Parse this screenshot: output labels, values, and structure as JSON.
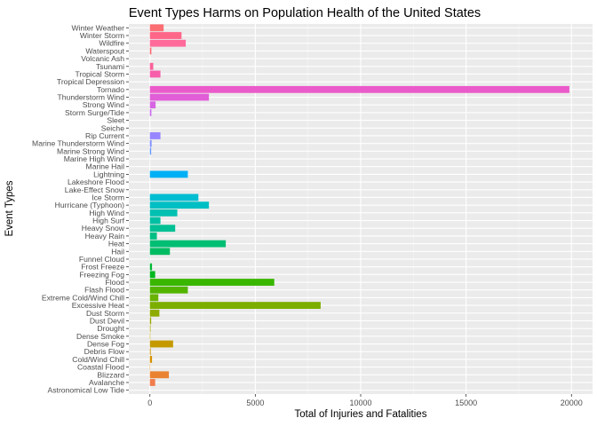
{
  "chart_data": {
    "type": "bar",
    "orientation": "horizontal",
    "title": "Event Types Harms on Population Health of the United States",
    "xlabel": "Total of Injuries and Fatalities",
    "ylabel": "Event Types",
    "xlim": [
      -1000,
      21000
    ],
    "xticks": [
      0,
      5000,
      10000,
      15000,
      20000
    ],
    "grid": true,
    "legend": "none",
    "categories": [
      "Astronomical Low Tide",
      "Avalanche",
      "Blizzard",
      "Coastal Flood",
      "Cold/Wind Chill",
      "Debris Flow",
      "Dense Fog",
      "Dense Smoke",
      "Drought",
      "Dust Devil",
      "Dust Storm",
      "Excessive Heat",
      "Extreme Cold/Wind Chill",
      "Flash Flood",
      "Flood",
      "Freezing Fog",
      "Frost Freeze",
      "Funnel Cloud",
      "Hail",
      "Heat",
      "Heavy Rain",
      "Heavy Snow",
      "High Surf",
      "High Wind",
      "Hurricane (Typhoon)",
      "Ice Storm",
      "Lake-Effect Snow",
      "Lakeshore Flood",
      "Lightning",
      "Marine Hail",
      "Marine High Wind",
      "Marine Strong Wind",
      "Marine Thunderstorm Wind",
      "Rip Current",
      "Seiche",
      "Sleet",
      "Storm Surge/Tide",
      "Strong Wind",
      "Thunderstorm Wind",
      "Tornado",
      "Tropical Depression",
      "Tropical Storm",
      "Tsunami",
      "Volcanic Ash",
      "Waterspout",
      "Wildfire",
      "Winter Storm",
      "Winter Weather"
    ],
    "values": [
      0,
      250,
      900,
      15,
      100,
      40,
      1100,
      20,
      30,
      60,
      450,
      8100,
      400,
      1800,
      5900,
      250,
      100,
      5,
      950,
      3600,
      330,
      1200,
      500,
      1300,
      2800,
      2300,
      0,
      0,
      1800,
      0,
      2,
      60,
      80,
      500,
      0,
      0,
      70,
      270,
      2800,
      19900,
      0,
      500,
      160,
      0,
      70,
      1700,
      1500,
      650
    ],
    "colors": [
      "#F8766D",
      "#F17C4D",
      "#EA8331",
      "#E18A00",
      "#D89000",
      "#CF9400",
      "#C49A00",
      "#B69F00",
      "#AAA300",
      "#9CA700",
      "#8EAB00",
      "#7CAE00",
      "#68B200",
      "#53B400",
      "#39B600",
      "#00B81F",
      "#00BA38",
      "#00BB4E",
      "#00BC62",
      "#00BE73",
      "#00BF84",
      "#00C094",
      "#00C0A3",
      "#00C0B2",
      "#00BFC4",
      "#00BDD2",
      "#00BAE0",
      "#00B6EB",
      "#00B0F6",
      "#0CA8FF",
      "#44A1FF",
      "#6699FF",
      "#7F8FFF",
      "#9685FF",
      "#A97CFF",
      "#BB73F8",
      "#C96BEE",
      "#D664E3",
      "#E15ED8",
      "#EB5ACA",
      "#F25BBB",
      "#F75FAB",
      "#FA629A",
      "#FC6688",
      "#FB6B75",
      "#FF6A9B",
      "#FF6788",
      "#FB6E73"
    ]
  }
}
